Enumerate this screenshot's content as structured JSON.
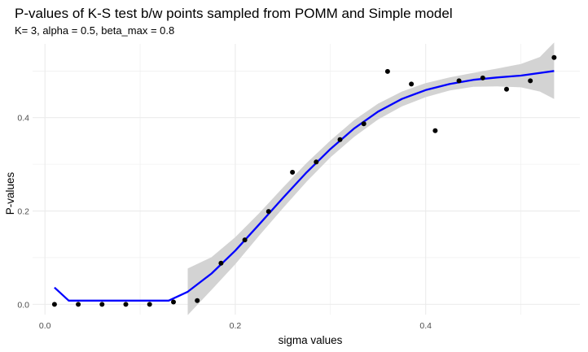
{
  "chart_data": {
    "type": "scatter",
    "title": "P-values of K-S test b/w points sampled from POMM and Simple model",
    "subtitle": "K= 3, alpha = 0.5, beta_max = 0.8",
    "xlabel": "sigma values",
    "ylabel": "P-values",
    "xlim": [
      -0.013,
      0.562
    ],
    "ylim": [
      -0.022,
      0.558
    ],
    "x_ticks": [
      0.0,
      0.2,
      0.4
    ],
    "x_tick_labels": [
      "0.0",
      "0.2",
      "0.4"
    ],
    "y_ticks": [
      0.0,
      0.2,
      0.4
    ],
    "y_tick_labels": [
      "0.0",
      "0.2",
      "0.4"
    ],
    "grid": true,
    "legend": "none",
    "points": {
      "x": [
        0.01,
        0.035,
        0.06,
        0.085,
        0.11,
        0.135,
        0.16,
        0.185,
        0.21,
        0.235,
        0.26,
        0.285,
        0.31,
        0.335,
        0.36,
        0.385,
        0.41,
        0.435,
        0.46,
        0.485,
        0.51,
        0.535
      ],
      "y": [
        0.0,
        0.0,
        0.0,
        0.0,
        0.0,
        0.005,
        0.008,
        0.088,
        0.138,
        0.199,
        0.283,
        0.305,
        0.353,
        0.387,
        0.499,
        0.472,
        0.372,
        0.479,
        0.485,
        0.461,
        0.479,
        0.529
      ],
      "color": "#000000"
    },
    "smooth_line": {
      "color": "#0000ff",
      "x": [
        0.01,
        0.025,
        0.04,
        0.08,
        0.12,
        0.13,
        0.15,
        0.175,
        0.2,
        0.225,
        0.25,
        0.275,
        0.3,
        0.325,
        0.35,
        0.375,
        0.4,
        0.425,
        0.45,
        0.475,
        0.5,
        0.535
      ],
      "y": [
        0.036,
        0.008,
        0.008,
        0.008,
        0.008,
        0.008,
        0.027,
        0.066,
        0.115,
        0.171,
        0.228,
        0.283,
        0.333,
        0.377,
        0.413,
        0.44,
        0.459,
        0.472,
        0.481,
        0.486,
        0.49,
        0.5
      ]
    },
    "confidence_band": {
      "color": "#d3d3d3",
      "x": [
        0.15,
        0.175,
        0.2,
        0.225,
        0.25,
        0.275,
        0.3,
        0.325,
        0.35,
        0.375,
        0.4,
        0.425,
        0.45,
        0.475,
        0.5,
        0.52,
        0.535
      ],
      "upper": [
        0.077,
        0.101,
        0.144,
        0.195,
        0.25,
        0.303,
        0.351,
        0.395,
        0.43,
        0.456,
        0.474,
        0.486,
        0.496,
        0.505,
        0.515,
        0.53,
        0.561
      ],
      "lower": [
        -0.023,
        0.031,
        0.086,
        0.147,
        0.206,
        0.263,
        0.315,
        0.359,
        0.396,
        0.424,
        0.444,
        0.458,
        0.466,
        0.467,
        0.465,
        0.456,
        0.44
      ]
    }
  }
}
